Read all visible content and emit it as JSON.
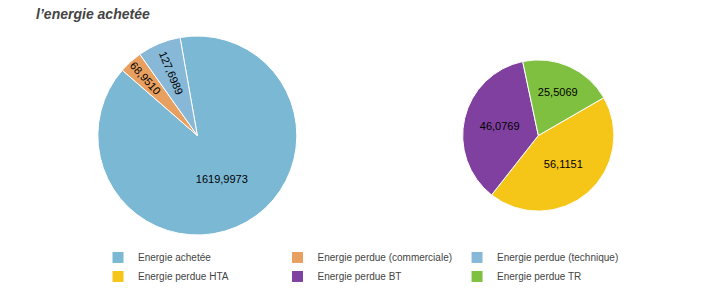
{
  "chart_data": [
    {
      "type": "pie",
      "title": "l’energie achetée",
      "categories": [
        "Energie achetée",
        "Energie perdue (commerciale)",
        "Energie perdue (technique)"
      ],
      "values": [
        1619.9973,
        68.951,
        127.6989
      ],
      "value_labels": [
        "1619,9973",
        "68,9510",
        "127,6989"
      ],
      "colors": [
        "#7BB8D4",
        "#E8A060",
        "#88B8D8"
      ],
      "data_labels": true,
      "legend": "bottom"
    },
    {
      "type": "pie",
      "categories": [
        "Energie perdue HTA",
        "Energie perdue BT",
        "Energie perdue TR"
      ],
      "values": [
        56.1151,
        46.0769,
        25.5069
      ],
      "value_labels": [
        "56,1151",
        "46,0769",
        "25,5069"
      ],
      "colors": [
        "#F5C518",
        "#8040A0",
        "#80C040"
      ],
      "data_labels": true,
      "legend": "bottom"
    }
  ]
}
